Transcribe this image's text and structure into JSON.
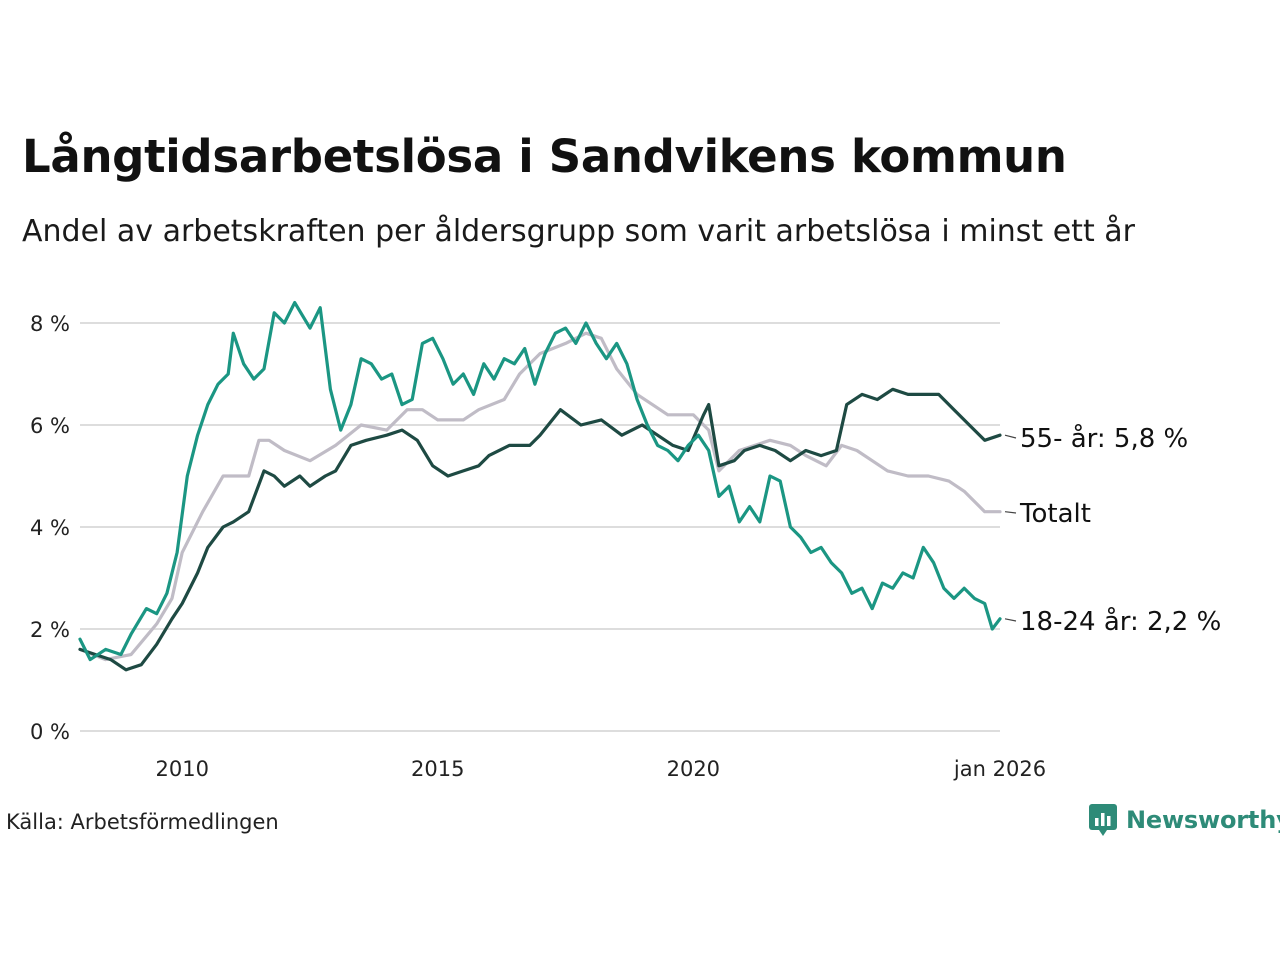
{
  "header": {
    "title": "Långtidsarbetslösa i Sandvikens kommun",
    "subtitle": "Andel av arbetskraften per åldersgrupp som varit arbetslösa i minst ett år"
  },
  "footer": {
    "source": "Källa: Arbetsförmedlingen",
    "brand": "Newsworthy"
  },
  "colors": {
    "youth": "#1b9683",
    "old": "#1e4a43",
    "total": "#c0bcc6",
    "grid": "#dddddd"
  },
  "chart_data": {
    "type": "line",
    "title": "Långtidsarbetslösa i Sandvikens kommun",
    "xlabel": "",
    "ylabel": "",
    "xlim": [
      2008.0,
      2026.0
    ],
    "ylim": [
      0,
      8
    ],
    "y_ticks": [
      0,
      2,
      4,
      6,
      8
    ],
    "y_tick_labels": [
      "0 %",
      "2 %",
      "4 %",
      "6 %",
      "8 %"
    ],
    "x_ticks": [
      2010,
      2015,
      2020,
      2026
    ],
    "x_tick_labels": [
      "2010",
      "2015",
      "2020",
      "jan 2026"
    ],
    "grid": true,
    "series": [
      {
        "name": "Totalt",
        "color_key": "total",
        "end_label": "Totalt",
        "points": [
          [
            2008.0,
            1.6
          ],
          [
            2008.5,
            1.4
          ],
          [
            2009.0,
            1.5
          ],
          [
            2009.5,
            2.1
          ],
          [
            2009.8,
            2.6
          ],
          [
            2010.0,
            3.5
          ],
          [
            2010.4,
            4.3
          ],
          [
            2010.8,
            5.0
          ],
          [
            2011.3,
            5.0
          ],
          [
            2011.5,
            5.7
          ],
          [
            2011.7,
            5.7
          ],
          [
            2012.0,
            5.5
          ],
          [
            2012.5,
            5.3
          ],
          [
            2013.0,
            5.6
          ],
          [
            2013.5,
            6.0
          ],
          [
            2014.0,
            5.9
          ],
          [
            2014.4,
            6.3
          ],
          [
            2014.7,
            6.3
          ],
          [
            2015.0,
            6.1
          ],
          [
            2015.5,
            6.1
          ],
          [
            2015.8,
            6.3
          ],
          [
            2016.3,
            6.5
          ],
          [
            2016.6,
            7.0
          ],
          [
            2017.0,
            7.4
          ],
          [
            2017.5,
            7.6
          ],
          [
            2017.9,
            7.8
          ],
          [
            2018.2,
            7.7
          ],
          [
            2018.5,
            7.1
          ],
          [
            2018.9,
            6.6
          ],
          [
            2019.2,
            6.4
          ],
          [
            2019.5,
            6.2
          ],
          [
            2020.0,
            6.2
          ],
          [
            2020.3,
            5.9
          ],
          [
            2020.5,
            5.1
          ],
          [
            2020.9,
            5.5
          ],
          [
            2021.2,
            5.6
          ],
          [
            2021.5,
            5.7
          ],
          [
            2021.9,
            5.6
          ],
          [
            2022.2,
            5.4
          ],
          [
            2022.6,
            5.2
          ],
          [
            2022.9,
            5.6
          ],
          [
            2023.2,
            5.5
          ],
          [
            2023.5,
            5.3
          ],
          [
            2023.8,
            5.1
          ],
          [
            2024.2,
            5.0
          ],
          [
            2024.6,
            5.0
          ],
          [
            2025.0,
            4.9
          ],
          [
            2025.3,
            4.7
          ],
          [
            2025.7,
            4.3
          ],
          [
            2026.0,
            4.3
          ]
        ]
      },
      {
        "name": "55- år",
        "color_key": "old",
        "end_label": "55- år: 5,8 %",
        "points": [
          [
            2008.0,
            1.6
          ],
          [
            2008.3,
            1.5
          ],
          [
            2008.6,
            1.4
          ],
          [
            2008.9,
            1.2
          ],
          [
            2009.2,
            1.3
          ],
          [
            2009.5,
            1.7
          ],
          [
            2009.8,
            2.2
          ],
          [
            2010.0,
            2.5
          ],
          [
            2010.3,
            3.1
          ],
          [
            2010.5,
            3.6
          ],
          [
            2010.8,
            4.0
          ],
          [
            2011.0,
            4.1
          ],
          [
            2011.3,
            4.3
          ],
          [
            2011.6,
            5.1
          ],
          [
            2011.8,
            5.0
          ],
          [
            2012.0,
            4.8
          ],
          [
            2012.3,
            5.0
          ],
          [
            2012.5,
            4.8
          ],
          [
            2012.8,
            5.0
          ],
          [
            2013.0,
            5.1
          ],
          [
            2013.3,
            5.6
          ],
          [
            2013.6,
            5.7
          ],
          [
            2014.0,
            5.8
          ],
          [
            2014.3,
            5.9
          ],
          [
            2014.6,
            5.7
          ],
          [
            2014.9,
            5.2
          ],
          [
            2015.2,
            5.0
          ],
          [
            2015.5,
            5.1
          ],
          [
            2015.8,
            5.2
          ],
          [
            2016.0,
            5.4
          ],
          [
            2016.4,
            5.6
          ],
          [
            2016.8,
            5.6
          ],
          [
            2017.0,
            5.8
          ],
          [
            2017.4,
            6.3
          ],
          [
            2017.8,
            6.0
          ],
          [
            2018.2,
            6.1
          ],
          [
            2018.6,
            5.8
          ],
          [
            2019.0,
            6.0
          ],
          [
            2019.3,
            5.8
          ],
          [
            2019.6,
            5.6
          ],
          [
            2019.9,
            5.5
          ],
          [
            2020.2,
            6.2
          ],
          [
            2020.3,
            6.4
          ],
          [
            2020.5,
            5.2
          ],
          [
            2020.8,
            5.3
          ],
          [
            2021.0,
            5.5
          ],
          [
            2021.3,
            5.6
          ],
          [
            2021.6,
            5.5
          ],
          [
            2021.9,
            5.3
          ],
          [
            2022.2,
            5.5
          ],
          [
            2022.5,
            5.4
          ],
          [
            2022.8,
            5.5
          ],
          [
            2023.0,
            6.4
          ],
          [
            2023.3,
            6.6
          ],
          [
            2023.6,
            6.5
          ],
          [
            2023.9,
            6.7
          ],
          [
            2024.2,
            6.6
          ],
          [
            2024.5,
            6.6
          ],
          [
            2024.8,
            6.6
          ],
          [
            2025.1,
            6.3
          ],
          [
            2025.4,
            6.0
          ],
          [
            2025.7,
            5.7
          ],
          [
            2026.0,
            5.8
          ]
        ]
      },
      {
        "name": "18-24 år",
        "color_key": "youth",
        "end_label": "18-24 år: 2,2 %",
        "points": [
          [
            2008.0,
            1.8
          ],
          [
            2008.2,
            1.4
          ],
          [
            2008.5,
            1.6
          ],
          [
            2008.8,
            1.5
          ],
          [
            2009.0,
            1.9
          ],
          [
            2009.3,
            2.4
          ],
          [
            2009.5,
            2.3
          ],
          [
            2009.7,
            2.7
          ],
          [
            2009.9,
            3.5
          ],
          [
            2010.1,
            5.0
          ],
          [
            2010.3,
            5.8
          ],
          [
            2010.5,
            6.4
          ],
          [
            2010.7,
            6.8
          ],
          [
            2010.9,
            7.0
          ],
          [
            2011.0,
            7.8
          ],
          [
            2011.2,
            7.2
          ],
          [
            2011.4,
            6.9
          ],
          [
            2011.6,
            7.1
          ],
          [
            2011.8,
            8.2
          ],
          [
            2012.0,
            8.0
          ],
          [
            2012.2,
            8.4
          ],
          [
            2012.5,
            7.9
          ],
          [
            2012.7,
            8.3
          ],
          [
            2012.9,
            6.7
          ],
          [
            2013.1,
            5.9
          ],
          [
            2013.3,
            6.4
          ],
          [
            2013.5,
            7.3
          ],
          [
            2013.7,
            7.2
          ],
          [
            2013.9,
            6.9
          ],
          [
            2014.1,
            7.0
          ],
          [
            2014.3,
            6.4
          ],
          [
            2014.5,
            6.5
          ],
          [
            2014.7,
            7.6
          ],
          [
            2014.9,
            7.7
          ],
          [
            2015.1,
            7.3
          ],
          [
            2015.3,
            6.8
          ],
          [
            2015.5,
            7.0
          ],
          [
            2015.7,
            6.6
          ],
          [
            2015.9,
            7.2
          ],
          [
            2016.1,
            6.9
          ],
          [
            2016.3,
            7.3
          ],
          [
            2016.5,
            7.2
          ],
          [
            2016.7,
            7.5
          ],
          [
            2016.9,
            6.8
          ],
          [
            2017.1,
            7.4
          ],
          [
            2017.3,
            7.8
          ],
          [
            2017.5,
            7.9
          ],
          [
            2017.7,
            7.6
          ],
          [
            2017.9,
            8.0
          ],
          [
            2018.1,
            7.6
          ],
          [
            2018.3,
            7.3
          ],
          [
            2018.5,
            7.6
          ],
          [
            2018.7,
            7.2
          ],
          [
            2018.9,
            6.5
          ],
          [
            2019.1,
            6.0
          ],
          [
            2019.3,
            5.6
          ],
          [
            2019.5,
            5.5
          ],
          [
            2019.7,
            5.3
          ],
          [
            2019.9,
            5.6
          ],
          [
            2020.1,
            5.8
          ],
          [
            2020.3,
            5.5
          ],
          [
            2020.5,
            4.6
          ],
          [
            2020.7,
            4.8
          ],
          [
            2020.9,
            4.1
          ],
          [
            2021.1,
            4.4
          ],
          [
            2021.3,
            4.1
          ],
          [
            2021.5,
            5.0
          ],
          [
            2021.7,
            4.9
          ],
          [
            2021.9,
            4.0
          ],
          [
            2022.1,
            3.8
          ],
          [
            2022.3,
            3.5
          ],
          [
            2022.5,
            3.6
          ],
          [
            2022.7,
            3.3
          ],
          [
            2022.9,
            3.1
          ],
          [
            2023.1,
            2.7
          ],
          [
            2023.3,
            2.8
          ],
          [
            2023.5,
            2.4
          ],
          [
            2023.7,
            2.9
          ],
          [
            2023.9,
            2.8
          ],
          [
            2024.1,
            3.1
          ],
          [
            2024.3,
            3.0
          ],
          [
            2024.5,
            3.6
          ],
          [
            2024.7,
            3.3
          ],
          [
            2024.9,
            2.8
          ],
          [
            2025.1,
            2.6
          ],
          [
            2025.3,
            2.8
          ],
          [
            2025.5,
            2.6
          ],
          [
            2025.7,
            2.5
          ],
          [
            2025.85,
            2.0
          ],
          [
            2026.0,
            2.2
          ]
        ]
      }
    ]
  }
}
